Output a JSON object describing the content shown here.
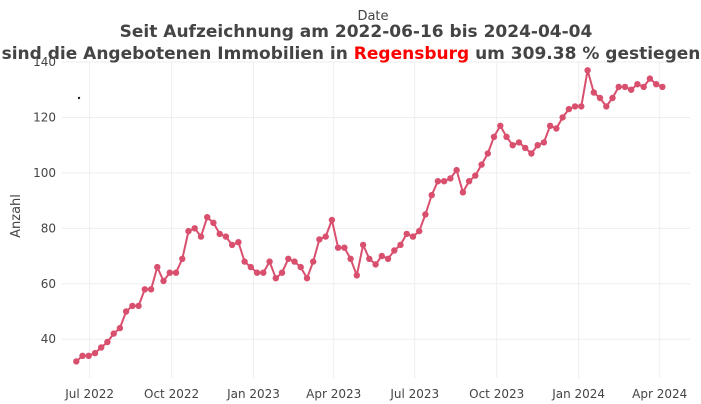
{
  "chart_data": {
    "type": "line",
    "title": {
      "line1": "Seit Aufzeichnung am 2022-06-16 bis  2024-04-04",
      "line2_prefix": "sind die Angebotenen Immobilien in ",
      "line2_city": "Regensburg",
      "line2_suffix": "  um 309.38 % gestiegen"
    },
    "xlabel": "Date",
    "ylabel": "Anzahl",
    "x_range": [
      "2022-05-31",
      "2024-05-05"
    ],
    "ylim": [
      26,
      140
    ],
    "y_ticks": [
      40,
      60,
      80,
      100,
      120,
      140
    ],
    "x_ticks": [
      {
        "date": "2022-07-01",
        "label": "Jul 2022"
      },
      {
        "date": "2022-10-01",
        "label": "Oct 2022"
      },
      {
        "date": "2023-01-01",
        "label": "Jan 2023"
      },
      {
        "date": "2023-04-01",
        "label": "Apr 2023"
      },
      {
        "date": "2023-07-01",
        "label": "Jul 2023"
      },
      {
        "date": "2023-10-01",
        "label": "Oct 2023"
      },
      {
        "date": "2024-01-01",
        "label": "Jan 2024"
      },
      {
        "date": "2024-04-01",
        "label": "Apr 2024"
      }
    ],
    "series_color": "#d9506f",
    "grid": true,
    "series": [
      {
        "x": [
          "2022-06-16",
          "2022-06-23",
          "2022-06-30",
          "2022-07-07",
          "2022-07-14",
          "2022-07-21",
          "2022-07-28",
          "2022-08-04",
          "2022-08-11",
          "2022-08-18",
          "2022-08-25",
          "2022-09-01",
          "2022-09-08",
          "2022-09-15",
          "2022-09-22",
          "2022-09-29",
          "2022-10-06",
          "2022-10-13",
          "2022-10-20",
          "2022-10-27",
          "2022-11-03",
          "2022-11-10",
          "2022-11-17",
          "2022-11-24",
          "2022-12-01",
          "2022-12-08",
          "2022-12-15",
          "2022-12-22",
          "2022-12-29",
          "2023-01-05",
          "2023-01-12",
          "2023-01-19",
          "2023-01-26",
          "2023-02-02",
          "2023-02-09",
          "2023-02-16",
          "2023-02-23",
          "2023-03-02",
          "2023-03-09",
          "2023-03-16",
          "2023-03-23",
          "2023-03-30",
          "2023-04-06",
          "2023-04-13",
          "2023-04-20",
          "2023-04-27",
          "2023-05-04",
          "2023-05-11",
          "2023-05-18",
          "2023-05-25",
          "2023-06-01",
          "2023-06-08",
          "2023-06-15",
          "2023-06-22",
          "2023-06-29",
          "2023-07-06",
          "2023-07-13",
          "2023-07-20",
          "2023-07-27",
          "2023-08-03",
          "2023-08-10",
          "2023-08-17",
          "2023-08-24",
          "2023-08-31",
          "2023-09-07",
          "2023-09-14",
          "2023-09-21",
          "2023-09-28",
          "2023-10-05",
          "2023-10-12",
          "2023-10-19",
          "2023-10-26",
          "2023-11-02",
          "2023-11-09",
          "2023-11-16",
          "2023-11-23",
          "2023-11-30",
          "2023-12-07",
          "2023-12-14",
          "2023-12-21",
          "2023-12-28",
          "2024-01-04",
          "2024-01-11",
          "2024-01-18",
          "2024-01-25",
          "2024-02-01",
          "2024-02-08",
          "2024-02-15",
          "2024-02-22",
          "2024-02-29",
          "2024-03-07",
          "2024-03-14",
          "2024-03-21",
          "2024-03-28",
          "2024-04-04"
        ],
        "values": [
          32,
          34,
          34,
          35,
          37,
          39,
          42,
          44,
          50,
          52,
          52,
          58,
          58,
          66,
          61,
          64,
          64,
          69,
          79,
          80,
          77,
          84,
          82,
          78,
          77,
          74,
          75,
          68,
          66,
          64,
          64,
          68,
          62,
          64,
          69,
          68,
          66,
          62,
          68,
          76,
          77,
          83,
          73,
          73,
          69,
          63,
          74,
          69,
          67,
          70,
          69,
          72,
          74,
          78,
          77,
          79,
          85,
          92,
          97,
          97,
          98,
          101,
          93,
          97,
          99,
          103,
          107,
          113,
          117,
          113,
          110,
          111,
          109,
          107,
          110,
          111,
          117,
          116,
          120,
          123,
          124,
          124,
          137,
          129,
          127,
          124,
          127,
          131,
          131,
          130,
          132,
          131,
          134,
          132,
          131
        ]
      }
    ]
  }
}
